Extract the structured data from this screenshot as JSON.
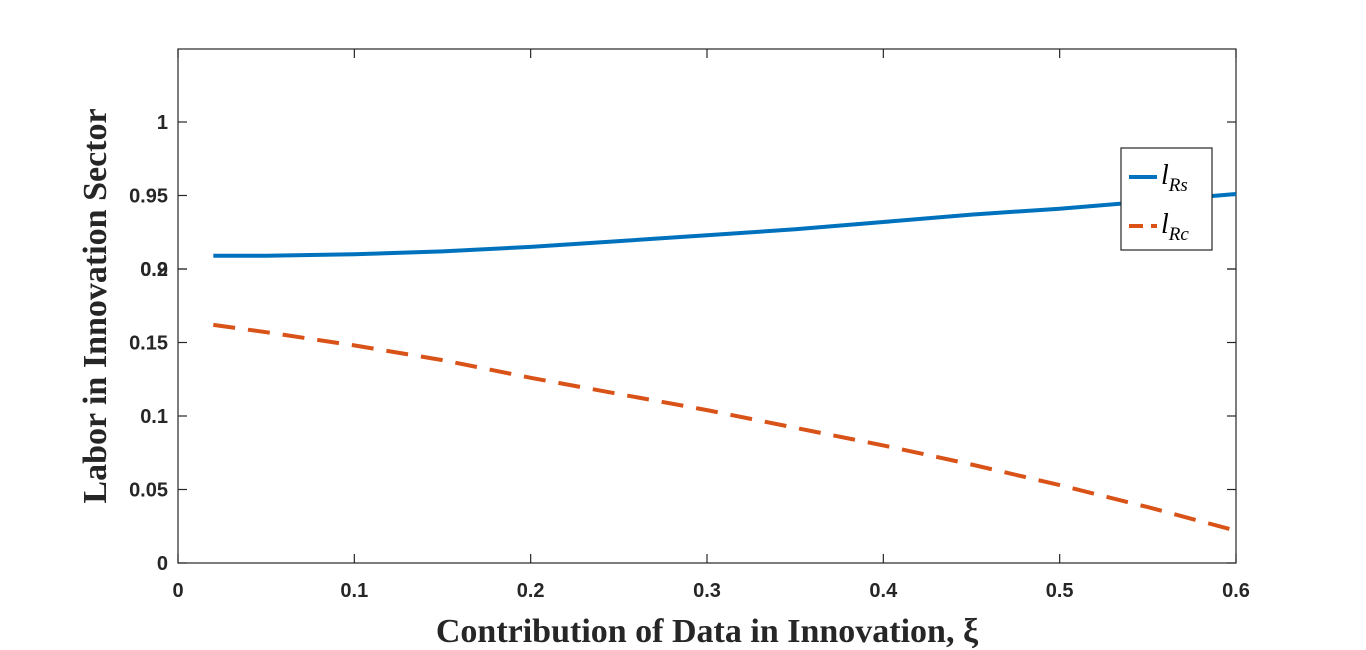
{
  "chart_data": {
    "type": "line",
    "title": "",
    "xlabel": "Contribution of Data in Innovation, ξ",
    "ylabel": "Labor in Innovation Sector",
    "xlim": [
      0,
      0.6
    ],
    "x_ticks": [
      "0",
      "0.1",
      "0.2",
      "0.3",
      "0.4",
      "0.5",
      "0.6"
    ],
    "y_ticks": [
      "0",
      "0.05",
      "0.1",
      "0.15",
      "0.2",
      "0.9",
      "0.95",
      "1"
    ],
    "y_axis_note": "broken axis: lower segment 0–0.2, upper segment 0.9–1",
    "grid": false,
    "legend_position": "right",
    "x": [
      0.02,
      0.05,
      0.1,
      0.15,
      0.2,
      0.25,
      0.3,
      0.35,
      0.4,
      0.45,
      0.5,
      0.55,
      0.6
    ],
    "series": [
      {
        "legend_main": "l",
        "legend_sub": "Rs",
        "color": "#0072BD",
        "style": "solid",
        "values": [
          0.909,
          0.909,
          0.91,
          0.912,
          0.915,
          0.919,
          0.923,
          0.927,
          0.932,
          0.937,
          0.941,
          0.946,
          0.951
        ]
      },
      {
        "legend_main": "l",
        "legend_sub": "Rc",
        "color": "#D95319",
        "style": "dashed",
        "values": [
          0.162,
          0.157,
          0.148,
          0.138,
          0.126,
          0.115,
          0.104,
          0.092,
          0.08,
          0.067,
          0.053,
          0.038,
          0.022
        ]
      }
    ]
  }
}
